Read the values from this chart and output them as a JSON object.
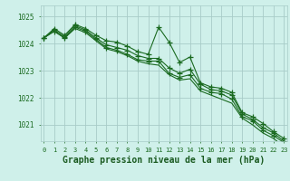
{
  "hours": [
    0,
    1,
    2,
    3,
    4,
    5,
    6,
    7,
    8,
    9,
    10,
    11,
    12,
    13,
    14,
    15,
    16,
    17,
    18,
    19,
    20,
    21,
    22,
    23
  ],
  "line1_marked": [
    1024.2,
    1024.55,
    1024.3,
    1024.7,
    1024.55,
    1024.3,
    1024.1,
    1024.05,
    1023.9,
    1023.7,
    1023.6,
    1024.6,
    1024.05,
    1023.3,
    1023.5,
    1022.55,
    1022.4,
    1022.35,
    1022.2,
    1021.45,
    1021.3,
    1021.05,
    1020.75,
    1020.5
  ],
  "line2_marked": [
    1024.2,
    1024.5,
    1024.25,
    1024.65,
    1024.5,
    1024.2,
    1023.95,
    1023.85,
    1023.75,
    1023.55,
    1023.45,
    1023.45,
    1023.1,
    1022.9,
    1023.05,
    1022.5,
    1022.3,
    1022.25,
    1022.1,
    1021.4,
    1021.2,
    1020.9,
    1020.7,
    1020.4
  ],
  "line3_marked": [
    1024.2,
    1024.45,
    1024.2,
    1024.6,
    1024.45,
    1024.15,
    1023.85,
    1023.75,
    1023.6,
    1023.4,
    1023.35,
    1023.35,
    1022.9,
    1022.75,
    1022.85,
    1022.35,
    1022.2,
    1022.15,
    1021.95,
    1021.3,
    1021.15,
    1020.8,
    1020.6,
    1020.35
  ],
  "line4_plain": [
    1024.2,
    1024.45,
    1024.2,
    1024.55,
    1024.4,
    1024.1,
    1023.8,
    1023.7,
    1023.55,
    1023.35,
    1023.25,
    1023.2,
    1022.85,
    1022.65,
    1022.7,
    1022.25,
    1022.1,
    1021.95,
    1021.8,
    1021.25,
    1021.0,
    1020.7,
    1020.5,
    1020.2
  ],
  "bg_color": "#cff0ea",
  "line_color": "#1a6a20",
  "grid_color": "#a8ccc8",
  "title": "Graphe pression niveau de la mer (hPa)",
  "ylim_min": 1020.4,
  "ylim_max": 1025.4,
  "yticks": [
    1021,
    1022,
    1023,
    1024,
    1025
  ],
  "title_color": "#1a5a20",
  "title_fontsize": 7.0
}
